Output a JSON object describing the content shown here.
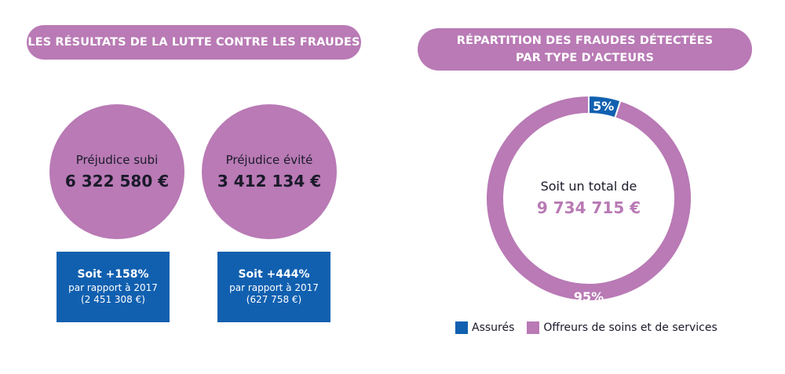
{
  "left_header": "LES RÉSULTATS DE LA LUTTE CONTRE LES FRAUDES",
  "right_header_line1": "RÉPARTITION DES FRAUDES DÉTECTÉES",
  "right_header_line2": "PAR TYPE D'ACTEURS",
  "colors": {
    "purple": "#b97ab5",
    "blue": "#1160b0",
    "text": "#1a1a2a"
  },
  "kpis": [
    {
      "label": "Préjudice subi",
      "value": "6 322 580  €",
      "change": "Soit +158%",
      "compare_line1": "par rapport à 2017",
      "compare_line2": "(2 451 308 €)"
    },
    {
      "label": "Préjudice évité",
      "value": "3 412 134 €",
      "change": "Soit +444%",
      "compare_line1": "par rapport à 2017",
      "compare_line2": "(627 758 €)"
    }
  ],
  "chart_data": {
    "type": "pie",
    "title": "RÉPARTITION DES FRAUDES DÉTECTÉES PAR TYPE D'ACTEURS",
    "categories": [
      "Assurés",
      "Offreurs de soins et de services"
    ],
    "values": [
      5,
      95
    ],
    "labels": [
      "5%",
      "95%"
    ],
    "colors": [
      "#1160b0",
      "#b97ab5"
    ],
    "center_label": "Soit un total de",
    "center_value": "9 734 715  €",
    "legend": "bottom",
    "donut": true
  }
}
